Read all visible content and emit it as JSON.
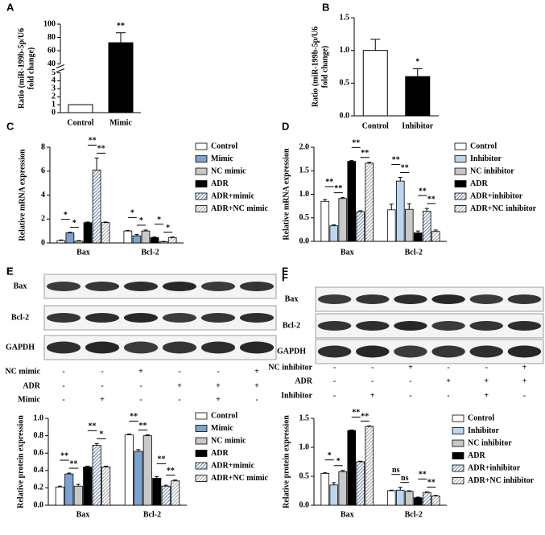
{
  "chart_data": [
    {
      "type": "bar",
      "panel": "A",
      "ylabel": [
        "Ratio (miR-199b-5p/U6",
        "fold change)"
      ],
      "categories": [
        "Control",
        "Mimic"
      ],
      "values": [
        1,
        72
      ],
      "errors": [
        0,
        15
      ],
      "colors": [
        "#ffffff",
        "#000000"
      ],
      "segments": [
        {
          "ylim": [
            0,
            5
          ],
          "yticks": [
            0,
            1,
            2,
            3,
            4,
            5
          ]
        },
        {
          "ylim": [
            40,
            100
          ],
          "yticks": [
            40,
            60,
            80,
            100
          ]
        }
      ],
      "bar_annotations": [
        null,
        "**"
      ]
    },
    {
      "type": "bar",
      "panel": "B",
      "ylabel": [
        "Ratio (miR-199b-5p/U6",
        "fold change)"
      ],
      "categories": [
        "Control",
        "Inhibitor"
      ],
      "values": [
        1.0,
        0.6
      ],
      "errors": [
        0.17,
        0.12
      ],
      "colors": [
        "#ffffff",
        "#000000"
      ],
      "ylim": [
        0,
        1.5
      ],
      "yticks": [
        {
          "value": 0,
          "label": "0.0"
        },
        {
          "value": 0.5,
          "label": "0.5"
        },
        {
          "value": 1,
          "label": "1.0"
        },
        {
          "value": 1.5,
          "label": "1.5"
        }
      ],
      "bar_annotations": [
        null,
        "*"
      ]
    },
    {
      "type": "bar",
      "panel": "C",
      "ylabel": "Relative mRNA expression",
      "categories": [
        "Bax",
        "Bcl-2"
      ],
      "ylim": [
        0,
        8
      ],
      "yticks": [
        0,
        2,
        4,
        6,
        8
      ],
      "series": [
        {
          "name": "Control",
          "color": "#ffffff",
          "values": [
            0.2,
            1.0
          ],
          "errors": [
            0.05,
            0.05
          ]
        },
        {
          "name": "Mimic",
          "color": "#7ba3cf",
          "values": [
            0.85,
            0.6
          ],
          "errors": [
            0.05,
            0.1
          ]
        },
        {
          "name": "NC mimic",
          "color": "#c8c8c8",
          "values": [
            0.15,
            1.0
          ],
          "errors": [
            0.05,
            0.08
          ]
        },
        {
          "name": "ADR",
          "color": "#000000",
          "values": [
            1.7,
            0.45
          ],
          "errors": [
            0.05,
            0.05
          ]
        },
        {
          "name": "ADR+mimic",
          "color": "#3d5f8f",
          "hatch": true,
          "values": [
            6.1,
            0.1
          ],
          "errors": [
            1.0,
            0.03
          ]
        },
        {
          "name": "ADR+NC mimic",
          "color": "#888888",
          "hatch": true,
          "values": [
            1.7,
            0.45
          ],
          "errors": [
            0.05,
            0.05
          ]
        }
      ],
      "annotations": [
        [
          "*",
          "*",
          "**",
          "**"
        ],
        [
          "*",
          "*",
          "*",
          "*"
        ]
      ]
    },
    {
      "type": "bar",
      "panel": "D",
      "ylabel": "Relative mRNA expression",
      "categories": [
        "Bax",
        "Bcl-2"
      ],
      "ylim": [
        0,
        2
      ],
      "yticks": [
        {
          "value": 0,
          "label": "0.0"
        },
        {
          "value": 0.5,
          "label": "0.5"
        },
        {
          "value": 1,
          "label": "1.0"
        },
        {
          "value": 1.5,
          "label": "1.5"
        },
        {
          "value": 2,
          "label": "2.0"
        }
      ],
      "series": [
        {
          "name": "Control",
          "color": "#ffffff",
          "values": [
            0.85,
            0.67
          ],
          "errors": [
            0.04,
            0.12
          ]
        },
        {
          "name": "Inhibitor",
          "color": "#bcd6f0",
          "values": [
            0.33,
            1.28
          ],
          "errors": [
            0.02,
            0.08
          ]
        },
        {
          "name": "NC inhibitor",
          "color": "#c8c8c8",
          "values": [
            0.91,
            0.68
          ],
          "errors": [
            0.02,
            0.12
          ]
        },
        {
          "name": "ADR",
          "color": "#000000",
          "values": [
            1.7,
            0.18
          ],
          "errors": [
            0.02,
            0.04
          ]
        },
        {
          "name": "ADR+inhibitor",
          "color": "#3d5f8f",
          "hatch": true,
          "values": [
            0.63,
            0.64
          ],
          "errors": [
            0.02,
            0.06
          ]
        },
        {
          "name": "ADR+NC inhibitor",
          "color": "#888888",
          "hatch": true,
          "values": [
            1.66,
            0.21
          ],
          "errors": [
            0.02,
            0.03
          ]
        }
      ],
      "annotations": [
        [
          "**",
          "**",
          "**",
          "**"
        ],
        [
          "**",
          "**",
          "**",
          "**"
        ]
      ]
    },
    {
      "type": "bar",
      "panel": "E",
      "ylabel": "Relative protein expression",
      "categories": [
        "Bax",
        "Bcl-2"
      ],
      "ylim": [
        0,
        1
      ],
      "yticks": [
        {
          "value": 0,
          "label": "0.0"
        },
        {
          "value": 0.2,
          "label": "0.2"
        },
        {
          "value": 0.4,
          "label": "0.4"
        },
        {
          "value": 0.6,
          "label": "0.6"
        },
        {
          "value": 0.8,
          "label": "0.8"
        },
        {
          "value": 1,
          "label": "1.0"
        }
      ],
      "series": [
        {
          "name": "Control",
          "color": "#ffffff",
          "values": [
            0.21,
            0.81
          ],
          "errors": [
            0.01,
            0.01
          ]
        },
        {
          "name": "Mimic",
          "color": "#7ba3cf",
          "values": [
            0.36,
            0.62
          ],
          "errors": [
            0.01,
            0.02
          ]
        },
        {
          "name": "NC mimic",
          "color": "#c8c8c8",
          "values": [
            0.22,
            0.8
          ],
          "errors": [
            0.02,
            0.01
          ]
        },
        {
          "name": "ADR",
          "color": "#000000",
          "values": [
            0.44,
            0.31
          ],
          "errors": [
            0.01,
            0.02
          ]
        },
        {
          "name": "ADR+mimic",
          "color": "#3d5f8f",
          "hatch": true,
          "values": [
            0.69,
            0.22
          ],
          "errors": [
            0.02,
            0.01
          ]
        },
        {
          "name": "ADR+NC mimic",
          "color": "#888888",
          "hatch": true,
          "values": [
            0.44,
            0.28
          ],
          "errors": [
            0.01,
            0.01
          ]
        }
      ],
      "annotations": [
        [
          "**",
          "**",
          "**",
          "*"
        ],
        [
          "**",
          "**",
          "**",
          "**"
        ]
      ]
    },
    {
      "type": "bar",
      "panel": "F",
      "ylabel": "Relative protein expression",
      "categories": [
        "Bax",
        "Bcl-2"
      ],
      "ylim": [
        0,
        1.5
      ],
      "yticks": [
        {
          "value": 0,
          "label": "0.0"
        },
        {
          "value": 0.5,
          "label": "0.5"
        },
        {
          "value": 1,
          "label": "1.0"
        },
        {
          "value": 1.5,
          "label": "1.5"
        }
      ],
      "series": [
        {
          "name": "Control",
          "color": "#ffffff",
          "values": [
            0.55,
            0.25
          ],
          "errors": [
            0.01,
            0.01
          ]
        },
        {
          "name": "Inhibitor",
          "color": "#bcd6f0",
          "values": [
            0.35,
            0.26
          ],
          "errors": [
            0.04,
            0.05
          ]
        },
        {
          "name": "NC inhibitor",
          "color": "#c8c8c8",
          "values": [
            0.58,
            0.24
          ],
          "errors": [
            0.02,
            0.01
          ]
        },
        {
          "name": "ADR",
          "color": "#000000",
          "values": [
            1.29,
            0.13
          ],
          "errors": [
            0.01,
            0.01
          ]
        },
        {
          "name": "ADR+inhibitor",
          "color": "#3d5f8f",
          "hatch": true,
          "values": [
            0.75,
            0.22
          ],
          "errors": [
            0.01,
            0.01
          ]
        },
        {
          "name": "ADR+NC inhibitor",
          "color": "#888888",
          "hatch": true,
          "values": [
            1.36,
            0.16
          ],
          "errors": [
            0.01,
            0.01
          ]
        }
      ],
      "annotations": [
        [
          "*",
          "*",
          "**",
          "**"
        ],
        [
          "ns",
          "ns",
          "**",
          "**"
        ]
      ]
    }
  ],
  "blots": [
    {
      "panel": "E",
      "rows": [
        "Bax",
        "Bcl-2",
        "GAPDH"
      ],
      "conditions": [
        {
          "name": "NC mimic",
          "signs": [
            "-",
            "-",
            "+",
            "-",
            "-",
            "+"
          ]
        },
        {
          "name": "ADR",
          "signs": [
            "-",
            "-",
            "-",
            "+",
            "+",
            "+"
          ]
        },
        {
          "name": "Mimic",
          "signs": [
            "-",
            "+",
            "-",
            "-",
            "+",
            "-"
          ]
        }
      ]
    },
    {
      "panel": "F",
      "rows": [
        "Bax",
        "Bcl-2",
        "GAPDH"
      ],
      "conditions": [
        {
          "name": "NC inhibitor",
          "signs": [
            "-",
            "-",
            "+",
            "-",
            "-",
            "+"
          ]
        },
        {
          "name": "ADR",
          "signs": [
            "-",
            "-",
            "-",
            "+",
            "+",
            "+"
          ]
        },
        {
          "name": "Inhibitor",
          "signs": [
            "-",
            "+",
            "-",
            "-",
            "+",
            "-"
          ]
        }
      ]
    }
  ]
}
